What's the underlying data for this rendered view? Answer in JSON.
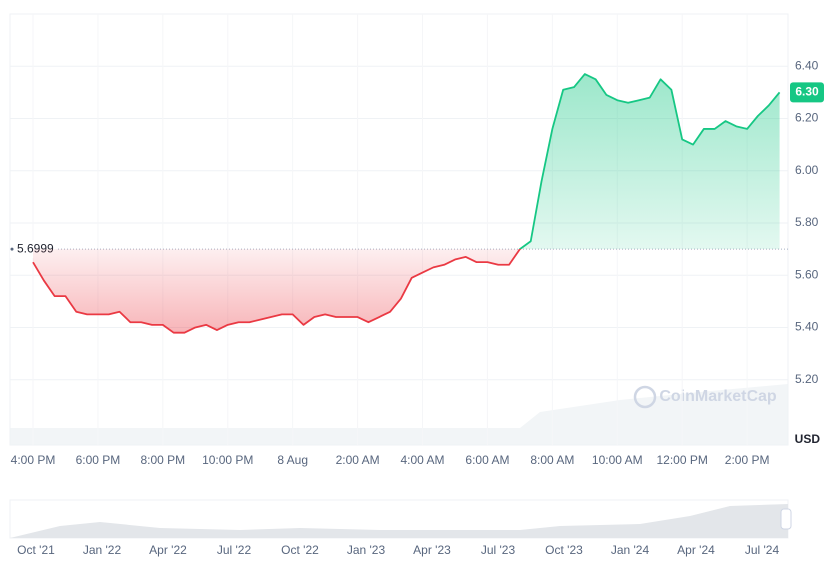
{
  "chart_data": {
    "type": "line",
    "categories": [
      "4:00 PM",
      null,
      null,
      null,
      null,
      null,
      "6:00 PM",
      null,
      null,
      null,
      null,
      null,
      "8:00 PM",
      null,
      null,
      null,
      null,
      null,
      "10:00 PM",
      null,
      null,
      null,
      null,
      null,
      "8 Aug",
      null,
      null,
      null,
      null,
      null,
      "2:00 AM",
      null,
      null,
      null,
      null,
      null,
      "4:00 AM",
      null,
      null,
      null,
      null,
      null,
      "6:00 AM",
      null,
      null,
      null,
      null,
      null,
      "8:00 AM",
      null,
      null,
      null,
      null,
      null,
      "10:00 AM",
      null,
      null,
      null,
      null,
      null,
      "12:00 PM",
      null,
      null,
      null,
      null,
      null,
      "2:00 PM",
      null,
      null,
      null
    ],
    "series": [
      {
        "values": [
          5.65,
          5.58,
          5.52,
          5.52,
          5.46,
          5.45,
          5.45,
          5.45,
          5.46,
          5.42,
          5.42,
          5.41,
          5.41,
          5.38,
          5.38,
          5.4,
          5.41,
          5.39,
          5.41,
          5.42,
          5.42,
          5.43,
          5.44,
          5.45,
          5.45,
          5.41,
          5.44,
          5.45,
          5.44,
          5.44,
          5.44,
          5.42,
          5.44,
          5.46,
          5.51,
          5.59,
          5.61,
          5.63,
          5.64,
          5.66,
          5.67,
          5.65,
          5.65,
          5.64,
          5.64,
          5.7,
          5.73,
          5.96,
          6.16,
          6.31,
          6.32,
          6.37,
          6.35,
          6.29,
          6.27,
          6.26,
          6.27,
          6.28,
          6.35,
          6.31,
          6.12,
          6.1,
          6.16,
          6.16,
          6.19,
          6.17,
          6.16,
          6.21,
          6.25,
          6.3
        ]
      }
    ],
    "up_color": "#16c784",
    "down_color": "#ea3943",
    "baseline": {
      "value": 5.6999,
      "label": "5.6999"
    },
    "current_price": {
      "value": 6.3,
      "label": "6.30"
    },
    "ylim": [
      4.95,
      6.6
    ],
    "yticks": [
      {
        "value": 5.2,
        "label": "5.20"
      },
      {
        "value": 5.4,
        "label": "5.40"
      },
      {
        "value": 5.6,
        "label": "5.60"
      },
      {
        "value": 5.8,
        "label": "5.80"
      },
      {
        "value": 6.0,
        "label": "6.00"
      },
      {
        "value": 6.2,
        "label": "6.20"
      },
      {
        "value": 6.4,
        "label": "6.40"
      }
    ],
    "y_axis_label": "USD",
    "grid": true,
    "watermark": "CoinMarketCap",
    "navigator_labels": [
      "Oct '21",
      "Jan '22",
      "Apr '22",
      "Jul '22",
      "Oct '22",
      "Jan '23",
      "Apr '23",
      "Jul '23",
      "Oct '23",
      "Jan '24",
      "Apr '24",
      "Jul '24"
    ]
  }
}
